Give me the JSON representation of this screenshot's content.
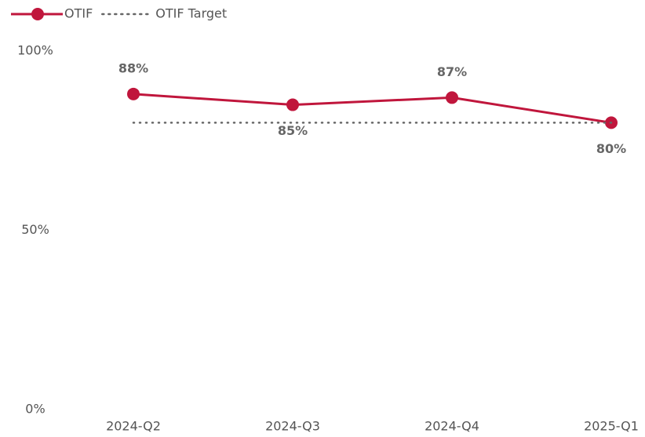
{
  "chart_data": {
    "type": "line",
    "categories": [
      "2024-Q2",
      "2024-Q3",
      "2024-Q4",
      "2025-Q1"
    ],
    "series": [
      {
        "name": "OTIF",
        "color": "#c0163c",
        "values": [
          88,
          85,
          87,
          80
        ],
        "value_labels": [
          "88%",
          "85%",
          "87%",
          "80%"
        ]
      },
      {
        "name": "OTIF Target",
        "color": "#666666",
        "values": [
          80,
          80,
          80,
          80
        ],
        "dotted": true
      }
    ],
    "ylim": [
      0,
      100
    ],
    "yticks": [
      {
        "value": 0,
        "label": "0%"
      },
      {
        "value": 50,
        "label": "50%"
      },
      {
        "value": 100,
        "label": "100%"
      }
    ],
    "legend": "top-left"
  }
}
